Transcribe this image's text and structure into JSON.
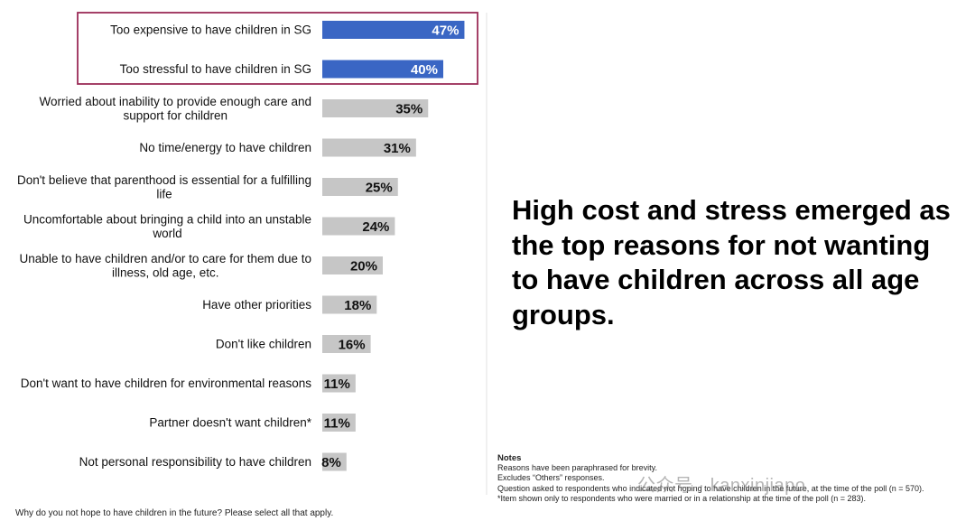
{
  "chart_data": {
    "type": "bar",
    "orientation": "horizontal",
    "categories": [
      [
        "Too expensive to have children in SG"
      ],
      [
        "Too stressful to have children in SG"
      ],
      [
        "Worried about inability to provide enough care and",
        "support for children"
      ],
      [
        "No time/energy to have children"
      ],
      [
        "Don't believe that parenthood is essential for a fulfilling",
        "life"
      ],
      [
        "Uncomfortable about bringing a child into an unstable",
        "world"
      ],
      [
        "Unable to have children and/or to care for them due to",
        "illness, old age, etc."
      ],
      [
        "Have other priorities"
      ],
      [
        "Don't like children"
      ],
      [
        "Don't want to have children for environmental reasons"
      ],
      [
        "Partner doesn't want children*"
      ],
      [
        "Not personal responsibility to have children"
      ]
    ],
    "values": [
      47,
      40,
      35,
      31,
      25,
      24,
      20,
      18,
      16,
      11,
      11,
      8
    ],
    "value_labels": [
      "47%",
      "40%",
      "35%",
      "31%",
      "25%",
      "24%",
      "20%",
      "18%",
      "16%",
      "11%",
      "11%",
      "8%"
    ],
    "highlighted": [
      true,
      true,
      false,
      false,
      false,
      false,
      false,
      false,
      false,
      false,
      false,
      false
    ],
    "highlight_color": "#3a66c4",
    "bar_color": "#c6c6c6",
    "highlight_box_color": "#9b2c57",
    "grid": false,
    "legend": "none"
  },
  "headline": "High cost and stress emerged as the top reasons for not wanting to have children across all age groups.",
  "notes": {
    "title": "Notes",
    "lines": [
      "Reasons have been paraphrased for brevity.",
      "Excludes “Others” responses.",
      "Question asked to respondents who indicated not hoping to have children in the future, at the time of the poll (n = 570).",
      "*Item shown only to respondents who were married or in a relationship at the time of the poll (n = 283)."
    ]
  },
  "question": "Why do you not hope to have children in the future? Please select all that apply.",
  "watermark": "公众号 · kanxinjiapo"
}
